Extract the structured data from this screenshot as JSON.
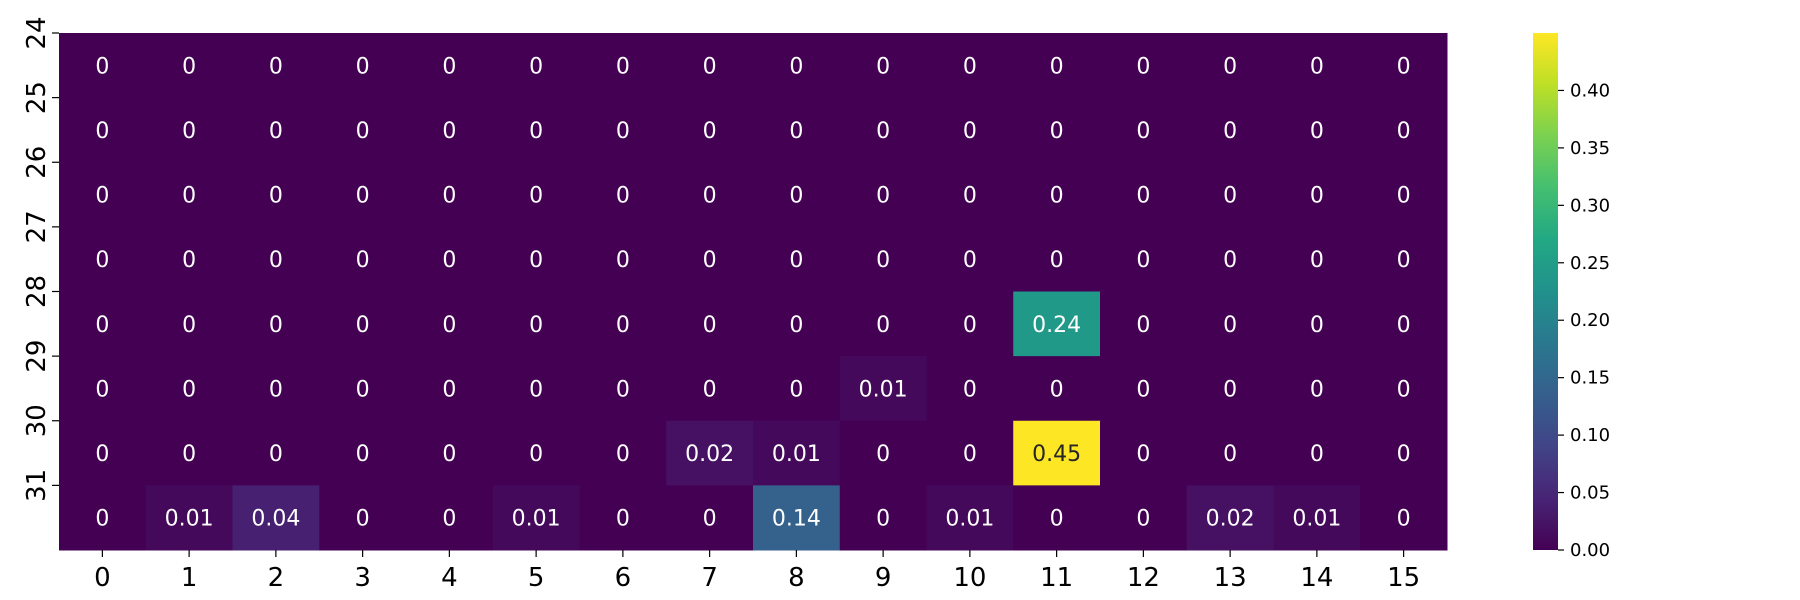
{
  "chart_data": {
    "type": "heatmap",
    "title": "",
    "xlabel": "",
    "ylabel": "",
    "x_categories": [
      "0",
      "1",
      "2",
      "3",
      "4",
      "5",
      "6",
      "7",
      "8",
      "9",
      "10",
      "11",
      "12",
      "13",
      "14",
      "15"
    ],
    "y_categories": [
      "24",
      "25",
      "26",
      "27",
      "28",
      "29",
      "30",
      "31"
    ],
    "values": [
      [
        0,
        0,
        0,
        0,
        0,
        0,
        0,
        0,
        0,
        0,
        0,
        0,
        0,
        0,
        0,
        0
      ],
      [
        0,
        0,
        0,
        0,
        0,
        0,
        0,
        0,
        0,
        0,
        0,
        0,
        0,
        0,
        0,
        0
      ],
      [
        0,
        0,
        0,
        0,
        0,
        0,
        0,
        0,
        0,
        0,
        0,
        0,
        0,
        0,
        0,
        0
      ],
      [
        0,
        0,
        0,
        0,
        0,
        0,
        0,
        0,
        0,
        0,
        0,
        0,
        0,
        0,
        0,
        0
      ],
      [
        0,
        0,
        0,
        0,
        0,
        0,
        0,
        0,
        0,
        0,
        0,
        0.24,
        0,
        0,
        0,
        0
      ],
      [
        0,
        0,
        0,
        0,
        0,
        0,
        0,
        0,
        0,
        0.01,
        0,
        0,
        0,
        0,
        0,
        0
      ],
      [
        0,
        0,
        0,
        0,
        0,
        0,
        0,
        0.02,
        0.01,
        0,
        0,
        0.45,
        0,
        0,
        0,
        0
      ],
      [
        0,
        0.01,
        0.04,
        0,
        0,
        0.01,
        0,
        0,
        0.14,
        0,
        0.01,
        0,
        0,
        0.02,
        0.01,
        0
      ]
    ],
    "colormap": "viridis",
    "colorbar": {
      "min": 0.0,
      "max": 0.45,
      "ticks": [
        "0.00",
        "0.05",
        "0.10",
        "0.15",
        "0.20",
        "0.25",
        "0.30",
        "0.35",
        "0.40"
      ]
    },
    "annotations": true,
    "grid": false,
    "legend": "colorbar-right"
  }
}
